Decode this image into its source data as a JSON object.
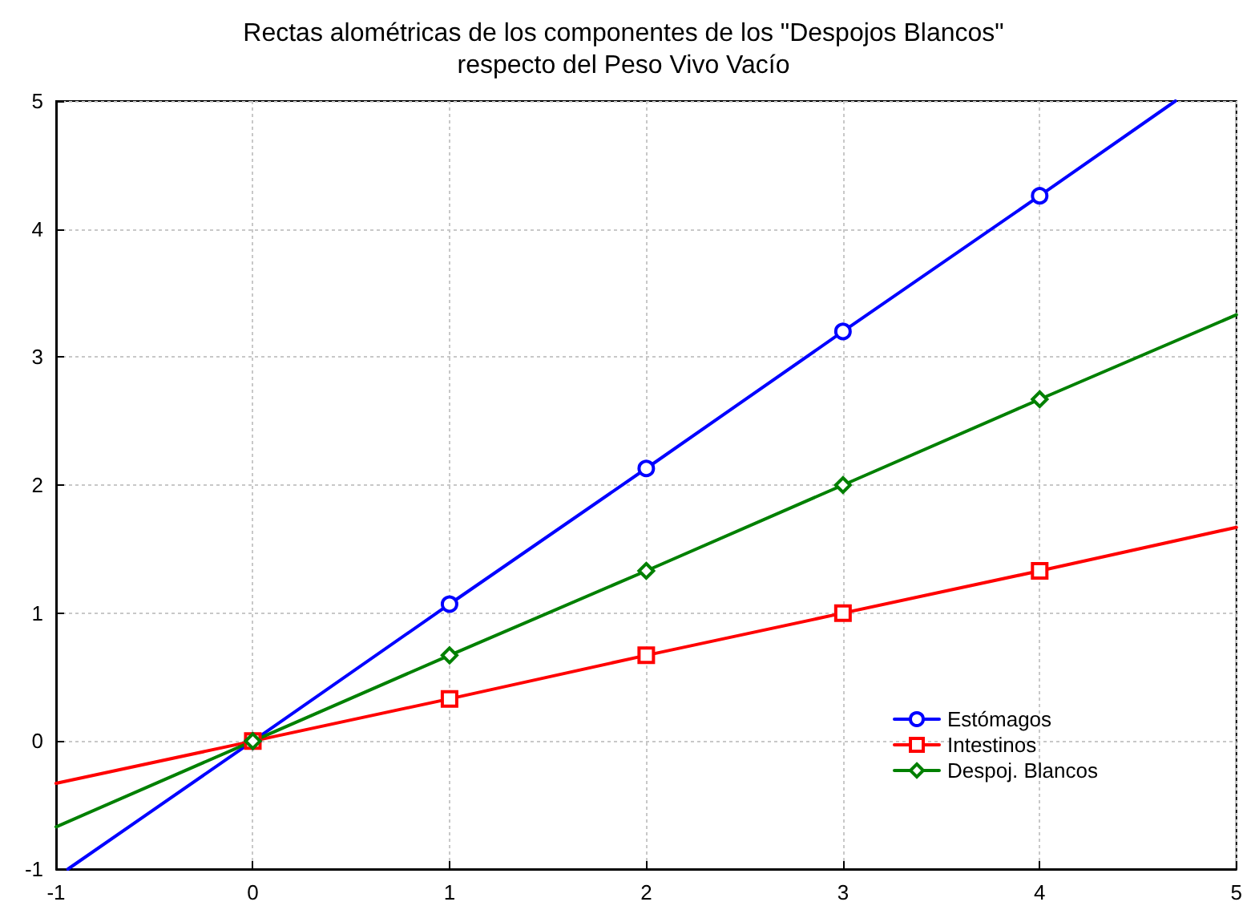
{
  "chart_data": {
    "type": "line",
    "title": "Rectas alométricas de los componentes de los \"Despojos Blancos\"\nrespecto del Peso Vivo Vacío",
    "xlim": [
      -1,
      5
    ],
    "xticks": [
      -1,
      0,
      1,
      2,
      3,
      4,
      5
    ],
    "ylim": [
      -1,
      5
    ],
    "yticks": [
      -1,
      0,
      1,
      2,
      3,
      4,
      5
    ],
    "grid": true,
    "legend": "right",
    "line_style": "solid",
    "series": [
      {
        "name": "Estómagos",
        "color": "#0000ff",
        "marker": "circle",
        "x": [
          -0.94,
          0,
          1,
          2,
          3,
          4,
          4.69
        ],
        "values": [
          -1,
          0,
          1.07,
          2.13,
          3.2,
          4.26,
          5
        ]
      },
      {
        "name": "Intestinos",
        "color": "#ff0000",
        "marker": "square",
        "x": [
          -1,
          0,
          1,
          2,
          3,
          4,
          5
        ],
        "values": [
          -0.33,
          0,
          0.33,
          0.67,
          1,
          1.33,
          1.67
        ]
      },
      {
        "name": "Despoj. Blancos",
        "color": "#008000",
        "marker": "diamond",
        "x": [
          -1,
          0,
          1,
          2,
          3,
          4,
          5
        ],
        "values": [
          -0.67,
          0,
          0.67,
          1.33,
          2,
          2.67,
          3.33
        ]
      }
    ]
  }
}
